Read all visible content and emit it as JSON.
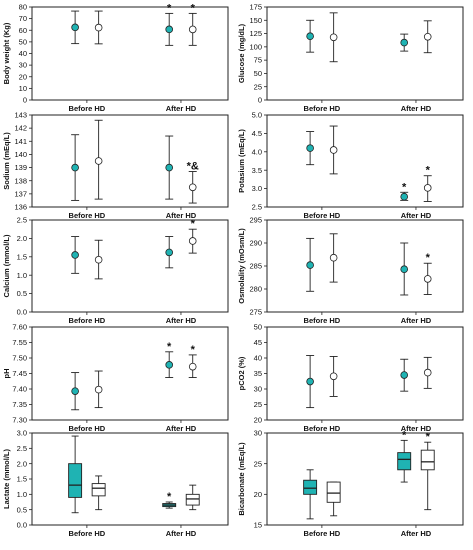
{
  "colors": {
    "teal": "#1fb3b3",
    "white": "#ffffff",
    "ink": "#222222"
  },
  "chart_data": [
    {
      "id": "bw",
      "type": "errorbar",
      "ylabel": "Body weight (Kg)",
      "categories": [
        "Before HD",
        "After HD"
      ],
      "ylim": [
        0,
        80
      ],
      "yticks": [
        0,
        10,
        20,
        30,
        40,
        50,
        60,
        70,
        80
      ],
      "series": [
        {
          "fill": "teal",
          "points": [
            {
              "x": 0,
              "mean": 62.5,
              "low": 48.5,
              "high": 76.5,
              "mark": ""
            },
            {
              "x": 1,
              "mean": 60.8,
              "low": 47,
              "high": 74.5,
              "mark": "*"
            }
          ]
        },
        {
          "fill": "white",
          "points": [
            {
              "x": 0,
              "mean": 62.3,
              "low": 48.3,
              "high": 76.5,
              "mark": ""
            },
            {
              "x": 1,
              "mean": 60.7,
              "low": 47,
              "high": 74.5,
              "mark": "*"
            }
          ]
        }
      ]
    },
    {
      "id": "glu",
      "type": "errorbar",
      "ylabel": "Glucose (mg/dL)",
      "categories": [
        "Before HD",
        "After HD"
      ],
      "ylim": [
        0,
        175
      ],
      "yticks": [
        0,
        25,
        50,
        75,
        100,
        125,
        150,
        175
      ],
      "series": [
        {
          "fill": "teal",
          "points": [
            {
              "x": 0,
              "mean": 120,
              "low": 90,
              "high": 150,
              "mark": ""
            },
            {
              "x": 1,
              "mean": 108,
              "low": 92,
              "high": 124,
              "mark": ""
            }
          ]
        },
        {
          "fill": "white",
          "points": [
            {
              "x": 0,
              "mean": 118,
              "low": 72,
              "high": 164,
              "mark": ""
            },
            {
              "x": 1,
              "mean": 119,
              "low": 89,
              "high": 149,
              "mark": ""
            }
          ]
        }
      ]
    },
    {
      "id": "na",
      "type": "errorbar",
      "ylabel": "Sodium (mEq/L)",
      "categories": [
        "Before HD",
        "After HD"
      ],
      "ylim": [
        136,
        143
      ],
      "yticks": [
        136,
        137,
        138,
        139,
        140,
        141,
        142,
        143
      ],
      "series": [
        {
          "fill": "teal",
          "points": [
            {
              "x": 0,
              "mean": 139,
              "low": 136.5,
              "high": 141.5,
              "mark": ""
            },
            {
              "x": 1,
              "mean": 139,
              "low": 136.6,
              "high": 141.4,
              "mark": ""
            }
          ]
        },
        {
          "fill": "white",
          "points": [
            {
              "x": 0,
              "mean": 139.5,
              "low": 136.6,
              "high": 142.6,
              "mark": ""
            },
            {
              "x": 1,
              "mean": 137.5,
              "low": 136.3,
              "high": 138.7,
              "mark": "*&"
            }
          ]
        }
      ]
    },
    {
      "id": "k",
      "type": "errorbar",
      "ylabel": "Potasium (mEq/L)",
      "categories": [
        "Before HD",
        "After HD"
      ],
      "ylim": [
        2.5,
        5.0
      ],
      "yticks": [
        2.5,
        3.0,
        3.5,
        4.0,
        4.5,
        5.0
      ],
      "series": [
        {
          "fill": "teal",
          "points": [
            {
              "x": 0,
              "mean": 4.1,
              "low": 3.65,
              "high": 4.55,
              "mark": ""
            },
            {
              "x": 1,
              "mean": 2.78,
              "low": 2.68,
              "high": 2.9,
              "mark": "*"
            }
          ]
        },
        {
          "fill": "white",
          "points": [
            {
              "x": 0,
              "mean": 4.05,
              "low": 3.4,
              "high": 4.7,
              "mark": ""
            },
            {
              "x": 1,
              "mean": 3.02,
              "low": 2.65,
              "high": 3.35,
              "mark": "*"
            }
          ]
        }
      ]
    },
    {
      "id": "ca",
      "type": "errorbar",
      "ylabel": "Calcium (mmol/L)",
      "categories": [
        "Before HD",
        "After HD"
      ],
      "ylim": [
        0.0,
        2.5
      ],
      "yticks": [
        0.0,
        0.5,
        1.0,
        1.5,
        2.0,
        2.5
      ],
      "series": [
        {
          "fill": "teal",
          "points": [
            {
              "x": 0,
              "mean": 1.55,
              "low": 1.05,
              "high": 2.05,
              "mark": ""
            },
            {
              "x": 1,
              "mean": 1.62,
              "low": 1.2,
              "high": 2.05,
              "mark": ""
            }
          ]
        },
        {
          "fill": "white",
          "points": [
            {
              "x": 0,
              "mean": 1.42,
              "low": 0.9,
              "high": 1.95,
              "mark": ""
            },
            {
              "x": 1,
              "mean": 1.93,
              "low": 1.6,
              "high": 2.25,
              "mark": "*"
            }
          ]
        }
      ]
    },
    {
      "id": "osm",
      "type": "errorbar",
      "ylabel": "Osmolality (mOsm/L)",
      "categories": [
        "Before HD",
        "After HD"
      ],
      "ylim": [
        275,
        295
      ],
      "yticks": [
        275,
        280,
        285,
        290,
        295
      ],
      "series": [
        {
          "fill": "teal",
          "points": [
            {
              "x": 0,
              "mean": 285.2,
              "low": 279.5,
              "high": 291,
              "mark": ""
            },
            {
              "x": 1,
              "mean": 284.3,
              "low": 278.7,
              "high": 290,
              "mark": ""
            }
          ]
        },
        {
          "fill": "white",
          "points": [
            {
              "x": 0,
              "mean": 286.8,
              "low": 281.5,
              "high": 292,
              "mark": ""
            },
            {
              "x": 1,
              "mean": 282.2,
              "low": 278.8,
              "high": 285.6,
              "mark": "*"
            }
          ]
        }
      ]
    },
    {
      "id": "ph",
      "type": "errorbar",
      "ylabel": "pH",
      "categories": [
        "Before HD",
        "After HD"
      ],
      "ylim": [
        7.3,
        7.6
      ],
      "yticks": [
        7.3,
        7.35,
        7.4,
        7.45,
        7.5,
        7.55,
        7.6
      ],
      "series": [
        {
          "fill": "teal",
          "points": [
            {
              "x": 0,
              "mean": 7.393,
              "low": 7.333,
              "high": 7.453,
              "mark": ""
            },
            {
              "x": 1,
              "mean": 7.478,
              "low": 7.437,
              "high": 7.52,
              "mark": "*"
            }
          ]
        },
        {
          "fill": "white",
          "points": [
            {
              "x": 0,
              "mean": 7.398,
              "low": 7.34,
              "high": 7.458,
              "mark": ""
            },
            {
              "x": 1,
              "mean": 7.472,
              "low": 7.437,
              "high": 7.51,
              "mark": "*"
            }
          ]
        }
      ]
    },
    {
      "id": "pco2",
      "type": "errorbar",
      "ylabel": "pCO2 (%)",
      "categories": [
        "Before HD",
        "After HD"
      ],
      "ylim": [
        20,
        50
      ],
      "yticks": [
        20,
        25,
        30,
        35,
        40,
        45,
        50
      ],
      "series": [
        {
          "fill": "teal",
          "points": [
            {
              "x": 0,
              "mean": 32.4,
              "low": 24,
              "high": 40.8,
              "mark": ""
            },
            {
              "x": 1,
              "mean": 34.5,
              "low": 29.3,
              "high": 39.6,
              "mark": ""
            }
          ]
        },
        {
          "fill": "white",
          "points": [
            {
              "x": 0,
              "mean": 34.1,
              "low": 27.6,
              "high": 40.5,
              "mark": ""
            },
            {
              "x": 1,
              "mean": 35.3,
              "low": 30.2,
              "high": 40.2,
              "mark": ""
            }
          ]
        }
      ]
    },
    {
      "id": "lac",
      "type": "boxplot",
      "ylabel": "Lactate (mmol/L)",
      "categories": [
        "Before HD",
        "After HD"
      ],
      "ylim": [
        0.0,
        3.0
      ],
      "yticks": [
        0.0,
        0.5,
        1.0,
        1.5,
        2.0,
        2.5,
        3.0
      ],
      "series": [
        {
          "fill": "teal",
          "boxes": [
            {
              "x": 0,
              "min": 0.4,
              "q1": 0.9,
              "median": 1.3,
              "q3": 2.0,
              "max": 2.9,
              "mark": ""
            },
            {
              "x": 1,
              "min": 0.55,
              "q1": 0.6,
              "median": 0.65,
              "q3": 0.7,
              "max": 0.75,
              "mark": "*"
            }
          ]
        },
        {
          "fill": "white",
          "boxes": [
            {
              "x": 0,
              "min": 0.5,
              "q1": 0.95,
              "median": 1.2,
              "q3": 1.35,
              "max": 1.6,
              "mark": ""
            },
            {
              "x": 1,
              "min": 0.5,
              "q1": 0.65,
              "median": 0.85,
              "q3": 1.0,
              "max": 1.3,
              "mark": ""
            }
          ]
        }
      ]
    },
    {
      "id": "bic",
      "type": "boxplot",
      "ylabel": "Bicarbonate (mEq/L)",
      "categories": [
        "Before HD",
        "After HD"
      ],
      "ylim": [
        15,
        30
      ],
      "yticks": [
        15,
        20,
        25,
        30
      ],
      "series": [
        {
          "fill": "teal",
          "boxes": [
            {
              "x": 0,
              "min": 16,
              "q1": 20,
              "median": 21,
              "q3": 22.3,
              "max": 24,
              "mark": ""
            },
            {
              "x": 1,
              "min": 22,
              "q1": 24,
              "median": 25.7,
              "q3": 26.8,
              "max": 28.8,
              "mark": "*"
            }
          ]
        },
        {
          "fill": "white",
          "boxes": [
            {
              "x": 0,
              "min": 16.5,
              "q1": 18.7,
              "median": 20.2,
              "q3": 22,
              "max": 22,
              "mark": ""
            },
            {
              "x": 1,
              "min": 17.5,
              "q1": 24,
              "median": 25.3,
              "q3": 27.2,
              "max": 28.5,
              "mark": "*"
            }
          ]
        }
      ]
    }
  ]
}
